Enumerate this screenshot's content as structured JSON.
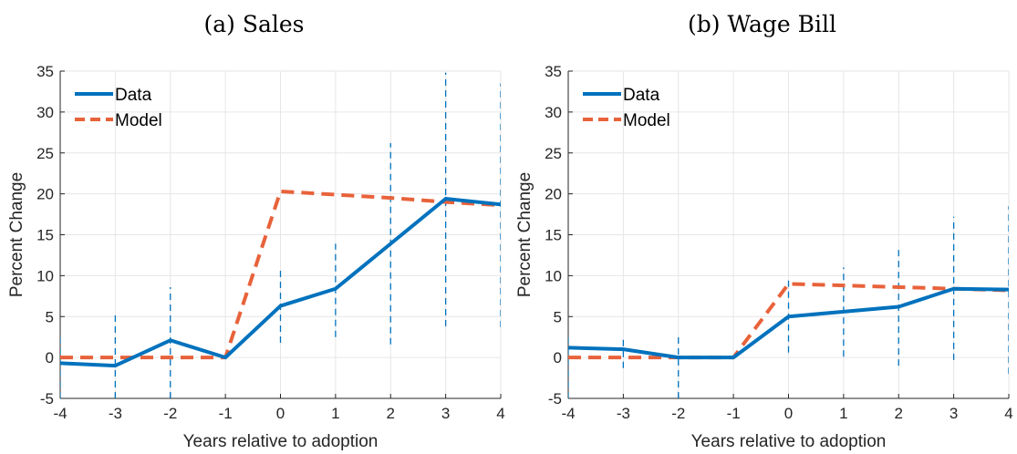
{
  "chart_data": [
    {
      "type": "line",
      "title": "(a) Sales",
      "xlabel": "Years relative to adoption",
      "ylabel": "Percent Change",
      "xlim": [
        -4,
        4
      ],
      "ylim": [
        -5,
        35
      ],
      "xticks": [
        -4,
        -3,
        -2,
        -1,
        0,
        1,
        2,
        3,
        4
      ],
      "yticks": [
        -5,
        0,
        5,
        10,
        15,
        20,
        25,
        30,
        35
      ],
      "grid": true,
      "legend_position": "top-left",
      "x": [
        -4,
        -3,
        -2,
        -1,
        0,
        1,
        2,
        3,
        4
      ],
      "series": [
        {
          "name": "Data",
          "style": "solid",
          "color": "#0072BD",
          "values": [
            -0.7,
            -1.0,
            2.1,
            0.0,
            6.3,
            8.4,
            13.9,
            19.4,
            18.7
          ]
        },
        {
          "name": "Model",
          "style": "dashed",
          "color": "#E8623A",
          "values": [
            0.0,
            0.0,
            0.0,
            0.0,
            20.3,
            19.9,
            19.5,
            19.0,
            18.6
          ]
        }
      ],
      "error_bars": {
        "color": "#0072BD",
        "low": [
          -5.0,
          -5.0,
          -5.0,
          null,
          1.8,
          2.5,
          1.6,
          3.8,
          3.7
        ],
        "high": [
          2.5,
          5.5,
          8.6,
          null,
          10.6,
          13.9,
          26.2,
          34.8,
          33.5
        ]
      }
    },
    {
      "type": "line",
      "title": "(b) Wage Bill",
      "xlabel": "Years relative to adoption",
      "ylabel": "Percent Change",
      "xlim": [
        -4,
        4
      ],
      "ylim": [
        -5,
        35
      ],
      "xticks": [
        -4,
        -3,
        -2,
        -1,
        0,
        1,
        2,
        3,
        4
      ],
      "yticks": [
        -5,
        0,
        5,
        10,
        15,
        20,
        25,
        30,
        35
      ],
      "grid": true,
      "legend_position": "top-left",
      "x": [
        -4,
        -3,
        -2,
        -1,
        0,
        1,
        2,
        3,
        4
      ],
      "series": [
        {
          "name": "Data",
          "style": "solid",
          "color": "#0072BD",
          "values": [
            1.2,
            1.0,
            0.0,
            0.0,
            5.0,
            5.6,
            6.2,
            8.4,
            8.3
          ]
        },
        {
          "name": "Model",
          "style": "dashed",
          "color": "#E8623A",
          "values": [
            0.0,
            0.0,
            0.0,
            0.0,
            9.0,
            8.8,
            8.6,
            8.4,
            8.2
          ]
        }
      ],
      "error_bars": {
        "color": "#0072BD",
        "low": [
          -5.0,
          -1.3,
          -5.0,
          null,
          0.6,
          0.1,
          -1.0,
          -0.3,
          -2.0
        ],
        "high": [
          3.0,
          2.6,
          3.0,
          null,
          9.8,
          11.0,
          13.4,
          17.2,
          18.5
        ]
      }
    }
  ]
}
